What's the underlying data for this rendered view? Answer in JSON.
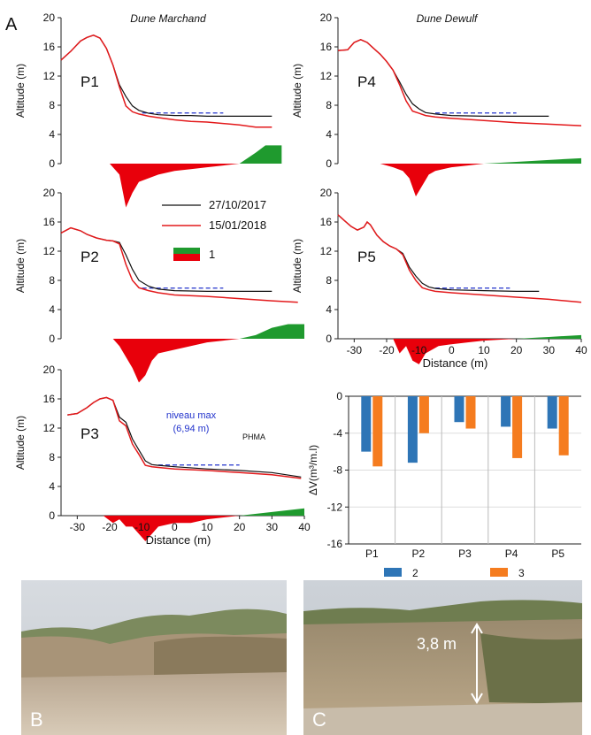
{
  "figure": {
    "panel_letter": "A",
    "sites": [
      "Dune Marchand",
      "Dune Dewulf"
    ],
    "y_axis_label": "Altitude (m)",
    "x_axis_label": "Distance (m)",
    "legend": {
      "date1": "27/10/2017",
      "date2": "15/01/2018",
      "diff_label": "1"
    },
    "annotation": {
      "line1": "niveau max",
      "line2": "(6,94 m)",
      "phma": "PHMA"
    },
    "photos": {
      "b_label": "B",
      "c_label": "C",
      "c_scale": "3,8 m"
    }
  },
  "colors": {
    "date1": "#111111",
    "date2": "#e31a1c",
    "loss": "#e8000b",
    "gain": "#1f9a2e",
    "level": "#2233cc",
    "bar2": "#2e75b6",
    "bar3": "#f57c1f"
  },
  "chart_data": [
    {
      "type": "line",
      "profile": "P1",
      "site": "Dune Marchand",
      "x_range": [
        -35,
        40
      ],
      "ylim": [
        0,
        20
      ],
      "x_ticks": [
        -30,
        -20,
        -10,
        0,
        10,
        20,
        30,
        40
      ],
      "y_ticks": [
        0,
        4,
        8,
        12,
        16,
        20
      ],
      "max_level_y": 6.94,
      "max_level_x_range": [
        -10,
        15
      ],
      "series": [
        {
          "name": "27/10/2017",
          "x": [
            -35,
            -32,
            -29,
            -27,
            -25,
            -23,
            -21,
            -19,
            -17,
            -15,
            -13,
            -11,
            -8,
            -5,
            0,
            5,
            10,
            20,
            30
          ],
          "y": [
            14.2,
            15.4,
            16.8,
            17.3,
            17.6,
            17.2,
            15.8,
            13.5,
            10.8,
            9.2,
            7.9,
            7.3,
            6.9,
            6.7,
            6.6,
            6.6,
            6.5,
            6.5,
            6.5
          ]
        },
        {
          "name": "15/01/2018",
          "x": [
            -35,
            -32,
            -29,
            -27,
            -25,
            -23,
            -21,
            -19,
            -17,
            -15,
            -13,
            -11,
            -8,
            -5,
            0,
            5,
            10,
            20,
            25,
            30
          ],
          "y": [
            14.2,
            15.4,
            16.8,
            17.3,
            17.6,
            17.2,
            15.8,
            13.5,
            10.5,
            7.9,
            7.1,
            6.8,
            6.5,
            6.3,
            6.0,
            5.8,
            5.7,
            5.3,
            5.0,
            5.0
          ]
        }
      ],
      "difference": {
        "x": [
          -20,
          -17,
          -15,
          -13,
          -11,
          -8,
          -5,
          0,
          5,
          10,
          15,
          20,
          25,
          28,
          33
        ],
        "y": [
          0,
          -0.3,
          -1.2,
          -0.8,
          -0.5,
          -0.4,
          -0.3,
          -0.2,
          -0.15,
          -0.1,
          -0.05,
          0,
          0.3,
          0.5,
          0.5
        ]
      }
    },
    {
      "type": "line",
      "profile": "P2",
      "site": "Dune Marchand",
      "x_range": [
        -35,
        40
      ],
      "ylim": [
        0,
        20
      ],
      "x_ticks": [
        -30,
        -20,
        -10,
        0,
        10,
        20,
        30,
        40
      ],
      "y_ticks": [
        0,
        4,
        8,
        12,
        16,
        20
      ],
      "max_level_y": 6.94,
      "max_level_x_range": [
        -10,
        15
      ],
      "series": [
        {
          "name": "27/10/2017",
          "x": [
            -35,
            -32,
            -29,
            -27,
            -24,
            -21,
            -19,
            -17,
            -15,
            -13,
            -11,
            -8,
            -5,
            0,
            10,
            20,
            30
          ],
          "y": [
            14.5,
            15.2,
            14.8,
            14.3,
            13.8,
            13.5,
            13.4,
            13.2,
            11.5,
            9.5,
            8.0,
            7.2,
            6.8,
            6.6,
            6.5,
            6.5,
            6.5
          ]
        },
        {
          "name": "15/01/2018",
          "x": [
            -35,
            -32,
            -29,
            -27,
            -24,
            -21,
            -19,
            -17,
            -15,
            -13,
            -11,
            -8,
            -5,
            0,
            10,
            20,
            30,
            38
          ],
          "y": [
            14.5,
            15.2,
            14.8,
            14.3,
            13.8,
            13.5,
            13.4,
            13.0,
            10.2,
            8.0,
            7.0,
            6.6,
            6.3,
            6.0,
            5.8,
            5.5,
            5.2,
            5.0
          ]
        }
      ],
      "difference": {
        "x": [
          -19,
          -17,
          -15,
          -13,
          -11,
          -9,
          -7,
          -5,
          0,
          5,
          10,
          15,
          20,
          25,
          30,
          35,
          40
        ],
        "y": [
          0,
          -0.2,
          -0.5,
          -0.8,
          -1.2,
          -1.0,
          -0.6,
          -0.4,
          -0.3,
          -0.2,
          -0.1,
          -0.05,
          0,
          0.1,
          0.3,
          0.4,
          0.4
        ]
      }
    },
    {
      "type": "line",
      "profile": "P3",
      "site": "Dune Marchand",
      "x_range": [
        -35,
        40
      ],
      "ylim": [
        0,
        20
      ],
      "x_ticks": [
        -30,
        -20,
        -10,
        0,
        10,
        20,
        30,
        40
      ],
      "y_ticks": [
        0,
        4,
        8,
        12,
        16,
        20
      ],
      "max_level_y": 6.94,
      "max_level_x_range": [
        -5,
        20
      ],
      "series": [
        {
          "name": "27/10/2017",
          "x": [
            -33,
            -30,
            -27,
            -25,
            -23,
            -21,
            -19,
            -17,
            -15,
            -13,
            -11,
            -9,
            -7,
            -5,
            0,
            10,
            20,
            30,
            39
          ],
          "y": [
            13.8,
            14.0,
            14.8,
            15.5,
            16.0,
            16.2,
            15.8,
            13.5,
            12.8,
            10.5,
            9.0,
            7.5,
            7.0,
            6.9,
            6.7,
            6.4,
            6.2,
            5.9,
            5.3
          ]
        },
        {
          "name": "15/01/2018",
          "x": [
            -33,
            -30,
            -27,
            -25,
            -23,
            -21,
            -19,
            -17,
            -15,
            -13,
            -11,
            -9,
            -7,
            -5,
            0,
            10,
            20,
            30,
            39
          ],
          "y": [
            13.8,
            14.0,
            14.8,
            15.5,
            16.0,
            16.2,
            15.8,
            13.0,
            12.3,
            9.8,
            8.4,
            6.9,
            6.7,
            6.6,
            6.4,
            6.2,
            5.9,
            5.6,
            5.1
          ]
        }
      ],
      "difference": {
        "x": [
          -22,
          -19,
          -17,
          -15,
          -13,
          -11,
          -9,
          -7,
          -5,
          0,
          5,
          10,
          20,
          30,
          40
        ],
        "y": [
          0,
          -0.2,
          -0.1,
          -0.3,
          -0.3,
          -0.5,
          -0.7,
          -0.5,
          -0.3,
          -0.2,
          -0.2,
          -0.1,
          0,
          0.1,
          0.2
        ]
      }
    },
    {
      "type": "line",
      "profile": "P4",
      "site": "Dune Dewulf",
      "x_range": [
        -35,
        40
      ],
      "ylim": [
        0,
        20
      ],
      "x_ticks": [
        -30,
        -20,
        -10,
        0,
        10,
        20,
        30,
        40
      ],
      "y_ticks": [
        0,
        4,
        8,
        12,
        16,
        20
      ],
      "max_level_y": 6.94,
      "max_level_x_range": [
        -5,
        20
      ],
      "series": [
        {
          "name": "27/10/2017",
          "x": [
            -35,
            -32,
            -30,
            -28,
            -26,
            -24,
            -22,
            -20,
            -18,
            -16,
            -14,
            -12,
            -10,
            -8,
            -5,
            0,
            10,
            20,
            30
          ],
          "y": [
            15.5,
            15.6,
            16.6,
            17.0,
            16.6,
            15.8,
            15.0,
            14.0,
            12.8,
            11.2,
            9.5,
            8.2,
            7.5,
            7.0,
            6.8,
            6.6,
            6.5,
            6.5,
            6.5
          ]
        },
        {
          "name": "15/01/2018",
          "x": [
            -35,
            -32,
            -30,
            -28,
            -26,
            -24,
            -22,
            -20,
            -18,
            -16,
            -14,
            -12,
            -10,
            -8,
            -5,
            0,
            10,
            20,
            30,
            40
          ],
          "y": [
            15.5,
            15.6,
            16.6,
            17.0,
            16.6,
            15.8,
            15.0,
            14.0,
            12.8,
            10.8,
            8.6,
            7.2,
            6.9,
            6.6,
            6.4,
            6.2,
            5.9,
            5.6,
            5.4,
            5.2
          ]
        }
      ],
      "difference": {
        "x": [
          -22,
          -18,
          -15,
          -13,
          -11,
          -9,
          -7,
          -5,
          0,
          5,
          10,
          20,
          30,
          40
        ],
        "y": [
          0,
          -0.1,
          -0.2,
          -0.4,
          -0.9,
          -0.6,
          -0.3,
          -0.2,
          -0.1,
          -0.05,
          0,
          0.05,
          0.1,
          0.15
        ]
      }
    },
    {
      "type": "line",
      "profile": "P5",
      "site": "Dune Dewulf",
      "x_range": [
        -35,
        40
      ],
      "ylim": [
        0,
        20
      ],
      "x_ticks": [
        -30,
        -20,
        -10,
        0,
        10,
        20,
        30,
        40
      ],
      "y_ticks": [
        0,
        4,
        8,
        12,
        16,
        20
      ],
      "max_level_y": 6.94,
      "max_level_x_range": [
        -5,
        18
      ],
      "series": [
        {
          "name": "27/10/2017",
          "x": [
            -35,
            -33,
            -31,
            -29,
            -27,
            -26,
            -25,
            -23,
            -21,
            -19,
            -17,
            -15,
            -13,
            -11,
            -9,
            -7,
            -5,
            0,
            10,
            20,
            27
          ],
          "y": [
            17.0,
            16.2,
            15.4,
            14.9,
            15.3,
            16.0,
            15.6,
            14.2,
            13.3,
            12.7,
            12.3,
            11.7,
            9.8,
            8.6,
            7.6,
            7.1,
            6.9,
            6.7,
            6.6,
            6.5,
            6.5
          ]
        },
        {
          "name": "15/01/2018",
          "x": [
            -35,
            -33,
            -31,
            -29,
            -27,
            -26,
            -25,
            -23,
            -21,
            -19,
            -17,
            -15,
            -13,
            -11,
            -9,
            -7,
            -5,
            0,
            10,
            20,
            30,
            40
          ],
          "y": [
            17.0,
            16.2,
            15.4,
            14.9,
            15.3,
            16.0,
            15.6,
            14.2,
            13.3,
            12.7,
            12.3,
            11.5,
            9.4,
            8.0,
            7.0,
            6.7,
            6.5,
            6.3,
            6.0,
            5.7,
            5.4,
            5.0
          ]
        }
      ],
      "difference": {
        "x": [
          -18,
          -16,
          -14,
          -12,
          -10,
          -8,
          -6,
          -4,
          0,
          5,
          10,
          20,
          30,
          40
        ],
        "y": [
          0,
          -0.4,
          -0.2,
          -0.6,
          -0.7,
          -0.4,
          -0.3,
          -0.2,
          -0.15,
          -0.1,
          -0.05,
          0,
          0.05,
          0.1
        ]
      }
    },
    {
      "type": "bar",
      "categories": [
        "P1",
        "P2",
        "P3",
        "P4",
        "P5"
      ],
      "series": [
        {
          "name": "2",
          "values": [
            -6.0,
            -7.2,
            -2.8,
            -3.3,
            -3.5
          ]
        },
        {
          "name": "3",
          "values": [
            -7.6,
            -4.0,
            -3.5,
            -6.7,
            -6.4
          ]
        }
      ],
      "ylabel": "ΔV(m³/m.l)",
      "ylim": [
        -16,
        0
      ],
      "y_ticks": [
        0,
        -4,
        -8,
        -12,
        -16
      ],
      "grid": true
    }
  ]
}
